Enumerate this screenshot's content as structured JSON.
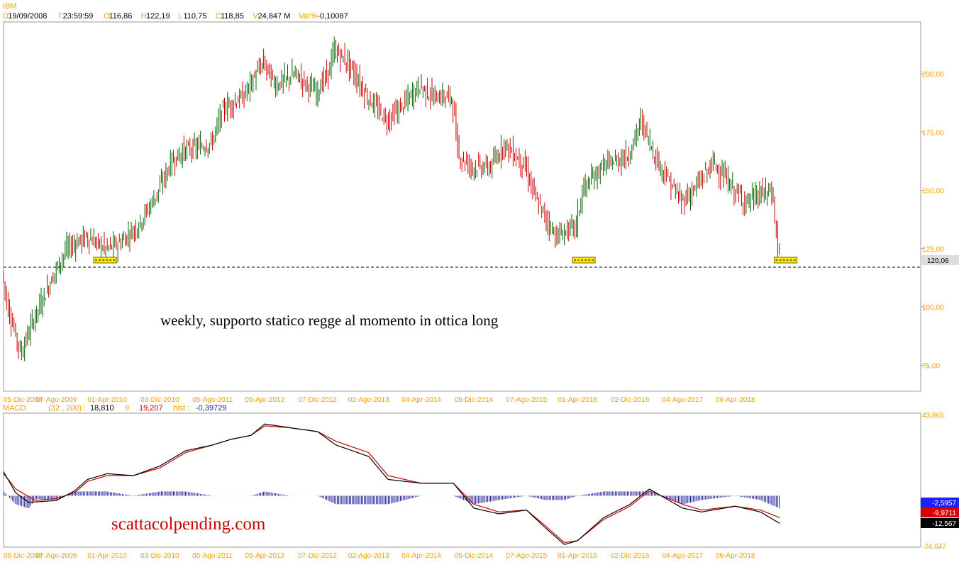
{
  "header": {
    "symbol": "IBM",
    "fields": [
      {
        "key": "D",
        "value": "19/09/2008"
      },
      {
        "key": "T",
        "value": "23:59:59"
      },
      {
        "key": "O",
        "value": "116,86"
      },
      {
        "key": "H",
        "value": "122,19"
      },
      {
        "key": "L",
        "value": "110,75"
      },
      {
        "key": "C",
        "value": "118,85"
      },
      {
        "key": "V",
        "value": "24,847 M"
      },
      {
        "key": "Var%",
        "value": "-0,10087"
      }
    ]
  },
  "colors": {
    "accent": "#f5a000",
    "up": "#006400",
    "down": "#cc0000",
    "macd_line": "#000000",
    "signal_line": "#cc0000",
    "histogram": "#1e1e9a",
    "support_box": "#ffee00"
  },
  "annotations": {
    "price_note": "weekly, supporto statico regge al momento in ottica long",
    "watermark": "scattacolpending.com"
  },
  "chart_data": [
    {
      "type": "candlestick",
      "frequency": "weekly",
      "x_ticks": [
        "05-Dic-2008",
        "07-Ago-2009",
        "01-Apr-2010",
        "03-Dic-2010",
        "05-Ago-2011",
        "05-Apr-2012",
        "07-Dic-2012",
        "02-Ago-2013",
        "04-Apr-2014",
        "05-Dic-2014",
        "07-Ago-2015",
        "01-Apr-2016",
        "02-Dic-2016",
        "04-Ago-2017",
        "06-Apr-2018"
      ],
      "y_ticks": [
        "75,00",
        "100,00",
        "125,00",
        "150,00",
        "175,00",
        "200,00"
      ],
      "ylim": [
        65,
        222
      ],
      "last_value": "120,06",
      "support_level": 120.06,
      "support_marks_at": [
        "01-Apr-2010",
        "01-Apr-2016",
        "06-Apr-2018"
      ],
      "price_path": [
        [
          "05-Dic-2008",
          115
        ],
        [
          "2009-01",
          100
        ],
        [
          "2009-03",
          80
        ],
        [
          "2009-05",
          95
        ],
        [
          "07-Ago-2009",
          115
        ],
        [
          "2009-10",
          125
        ],
        [
          "2010-01",
          130
        ],
        [
          "01-Apr-2010",
          125
        ],
        [
          "2010-06",
          127
        ],
        [
          "2010-09",
          135
        ],
        [
          "03-Dic-2010",
          150
        ],
        [
          "2011-02",
          162
        ],
        [
          "2011-04",
          167
        ],
        [
          "05-Ago-2011",
          170
        ],
        [
          "2011-10",
          185
        ],
        [
          "2012-01",
          190
        ],
        [
          "05-Apr-2012",
          205
        ],
        [
          "2012-06",
          195
        ],
        [
          "2012-09",
          200
        ],
        [
          "07-Dic-2012",
          192
        ],
        [
          "2013-02",
          200
        ],
        [
          "2013-03",
          210
        ],
        [
          "2013-05",
          205
        ],
        [
          "02-Ago-2013",
          190
        ],
        [
          "2013-11",
          180
        ],
        [
          "2014-01",
          185
        ],
        [
          "04-Apr-2014",
          195
        ],
        [
          "2014-06",
          190
        ],
        [
          "2014-09",
          190
        ],
        [
          "2014-10",
          165
        ],
        [
          "05-Dic-2014",
          160
        ],
        [
          "2015-03",
          160
        ],
        [
          "2015-05",
          170
        ],
        [
          "07-Ago-2015",
          160
        ],
        [
          "2015-10",
          145
        ],
        [
          "2016-01",
          130
        ],
        [
          "01-Apr-2016",
          135
        ],
        [
          "2016-05",
          150
        ],
        [
          "2016-08",
          160
        ],
        [
          "02-Dic-2016",
          165
        ],
        [
          "2017-02",
          180
        ],
        [
          "2017-04",
          165
        ],
        [
          "2017-06",
          155
        ],
        [
          "04-Ago-2017",
          145
        ],
        [
          "2017-10",
          150
        ],
        [
          "2018-01",
          162
        ],
        [
          "06-Apr-2018",
          150
        ],
        [
          "2018-06",
          145
        ],
        [
          "2018-08",
          148
        ],
        [
          "2018-10",
          150
        ],
        [
          "2018-11",
          122
        ]
      ]
    },
    {
      "type": "line",
      "indicator": "MACD",
      "params": "(32 , 200)",
      "values_label": {
        "macd": "18,810",
        "signal_period": "9",
        "signal": "19,207",
        "hist_label": "hist",
        "hist": "-0,39729"
      },
      "y_ticks": [
        "43,865",
        "-24,647"
      ],
      "ylim": [
        -24.647,
        43.865
      ],
      "last_values": {
        "hist": "-2,5957",
        "signal": "-9,9711",
        "macd": "-12,567"
      },
      "series": [
        {
          "name": "MACD",
          "points": [
            [
              "05-Dic-2008",
              14
            ],
            [
              "2009-02",
              3
            ],
            [
              "2009-04",
              -2
            ],
            [
              "07-Ago-2009",
              -1
            ],
            [
              "2009-11",
              4
            ],
            [
              "2010-01",
              10
            ],
            [
              "01-Apr-2010",
              13
            ],
            [
              "2010-08",
              12
            ],
            [
              "03-Dic-2010",
              17
            ],
            [
              "2011-04",
              25
            ],
            [
              "05-Ago-2011",
              28
            ],
            [
              "2011-11",
              31
            ],
            [
              "2012-02",
              33
            ],
            [
              "05-Apr-2012",
              39
            ],
            [
              "2012-08",
              37
            ],
            [
              "07-Dic-2012",
              35
            ],
            [
              "2013-03",
              28
            ],
            [
              "02-Ago-2013",
              22
            ],
            [
              "2013-11",
              10
            ],
            [
              "04-Apr-2014",
              8
            ],
            [
              "2014-09",
              8
            ],
            [
              "05-Dic-2014",
              -5
            ],
            [
              "2015-04",
              -8
            ],
            [
              "07-Ago-2015",
              -6
            ],
            [
              "2015-11",
              -15
            ],
            [
              "2016-02",
              -24
            ],
            [
              "01-Apr-2016",
              -22
            ],
            [
              "2016-08",
              -10
            ],
            [
              "02-Dic-2016",
              -3
            ],
            [
              "2017-03",
              5
            ],
            [
              "04-Ago-2017",
              -5
            ],
            [
              "2017-11",
              -7
            ],
            [
              "06-Apr-2018",
              -4
            ],
            [
              "2018-08",
              -7
            ],
            [
              "2018-11",
              -13
            ]
          ]
        },
        {
          "name": "Signal",
          "points": [
            [
              "05-Dic-2008",
              13
            ],
            [
              "2009-02",
              5
            ],
            [
              "2009-05",
              -1
            ],
            [
              "07-Ago-2009",
              0
            ],
            [
              "2009-11",
              3
            ],
            [
              "2010-01",
              9
            ],
            [
              "01-Apr-2010",
              12
            ],
            [
              "2010-08",
              12
            ],
            [
              "03-Dic-2010",
              16
            ],
            [
              "2011-04",
              24
            ],
            [
              "05-Ago-2011",
              28
            ],
            [
              "2011-11",
              31
            ],
            [
              "2012-02",
              33
            ],
            [
              "05-Apr-2012",
              38
            ],
            [
              "2012-08",
              37
            ],
            [
              "07-Dic-2012",
              35
            ],
            [
              "2013-03",
              30
            ],
            [
              "02-Ago-2013",
              24
            ],
            [
              "2013-11",
              12
            ],
            [
              "04-Apr-2014",
              8
            ],
            [
              "2014-09",
              8
            ],
            [
              "05-Dic-2014",
              -3
            ],
            [
              "2015-04",
              -7
            ],
            [
              "07-Ago-2015",
              -6
            ],
            [
              "2015-11",
              -14
            ],
            [
              "2016-02",
              -23
            ],
            [
              "01-Apr-2016",
              -22
            ],
            [
              "2016-08",
              -11
            ],
            [
              "02-Dic-2016",
              -4
            ],
            [
              "2017-03",
              4
            ],
            [
              "04-Ago-2017",
              -3
            ],
            [
              "2017-11",
              -6
            ],
            [
              "06-Apr-2018",
              -4
            ],
            [
              "2018-08",
              -6
            ],
            [
              "2018-11",
              -10
            ]
          ]
        }
      ]
    }
  ]
}
